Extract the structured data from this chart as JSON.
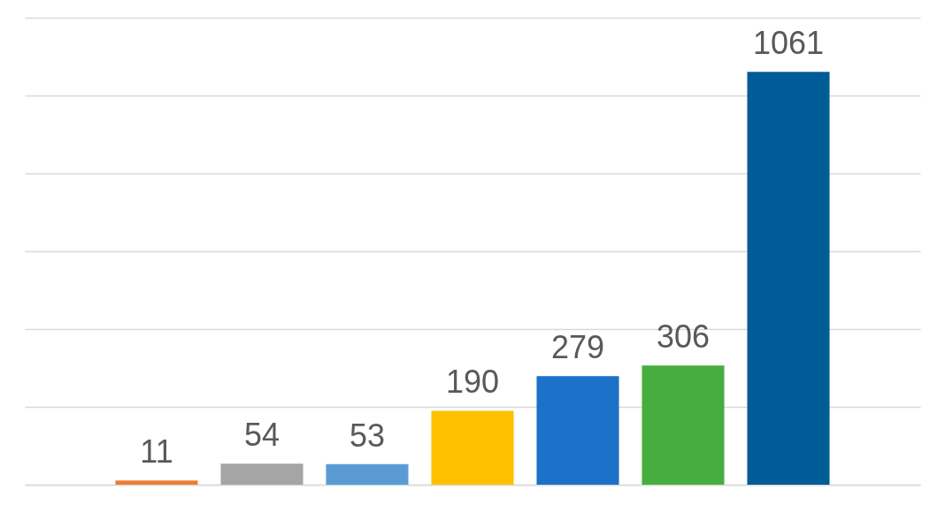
{
  "chart_data": {
    "type": "bar",
    "categories": [
      null,
      null,
      null,
      null,
      null,
      null,
      null
    ],
    "values": [
      11,
      54,
      53,
      190,
      279,
      306,
      1061
    ],
    "colors": [
      "#ed7d31",
      "#a5a5a5",
      "#5b9bd5",
      "#ffc000",
      "#1b72c8",
      "#46ae3e",
      "#005c97"
    ],
    "ylim": [
      0,
      1200
    ],
    "yticks": [
      0,
      200,
      400,
      600,
      800,
      1000,
      1200
    ],
    "grid": "y",
    "tick_labels": false,
    "data_labels": true
  }
}
